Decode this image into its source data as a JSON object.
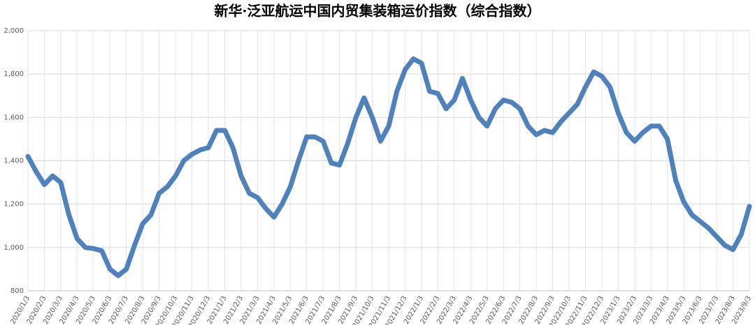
{
  "chart_data": {
    "type": "line",
    "title": "新华·泛亚航运中国内贸集装箱运价指数（综合指数）",
    "categories": [
      "2020/1/3",
      null,
      "2020/2/3",
      null,
      "2020/3/3",
      null,
      "2020/4/3",
      null,
      "2020/5/3",
      null,
      "2020/6/3",
      null,
      "2020/7/3",
      null,
      "2020/8/3",
      null,
      "2020/9/3",
      null,
      "2020/10/3",
      null,
      "2020/11/3",
      null,
      "2020/12/3",
      null,
      "2021/1/3",
      null,
      "2021/2/3",
      null,
      "2021/3/3",
      null,
      "2021/4/3",
      null,
      "2021/5/3",
      null,
      "2021/6/3",
      null,
      "2021/7/3",
      null,
      "2021/8/3",
      null,
      "2021/9/3",
      null,
      "2021/10/3",
      null,
      "2021/11/3",
      null,
      "2021/12/3",
      null,
      "2022/1/3",
      null,
      "2022/2/3",
      null,
      "2022/3/3",
      null,
      "2022/4/3",
      null,
      "2022/5/3",
      null,
      "2022/6/3",
      null,
      "2022/7/3",
      null,
      "2022/8/3",
      null,
      "2022/9/3",
      null,
      "2022/10/3",
      null,
      "2022/11/3",
      null,
      "2022/12/3",
      null,
      "2023/1/3",
      null,
      "2023/2/3",
      null,
      "2023/3/3",
      null,
      "2023/4/3",
      null,
      "2023/5/3",
      null,
      "2023/6/3",
      null,
      "2023/7/3",
      null,
      "2023/8/3",
      null,
      "2023/9/3"
    ],
    "series": [
      {
        "name": "综合指数",
        "color": "#4f81bd",
        "values": [
          1420,
          1350,
          1290,
          1330,
          1300,
          1150,
          1040,
          1000,
          995,
          985,
          900,
          870,
          900,
          1010,
          1110,
          1150,
          1250,
          1280,
          1330,
          1400,
          1430,
          1450,
          1460,
          1540,
          1540,
          1460,
          1330,
          1250,
          1230,
          1180,
          1140,
          1200,
          1280,
          1400,
          1510,
          1510,
          1490,
          1390,
          1380,
          1480,
          1600,
          1690,
          1600,
          1490,
          1560,
          1720,
          1820,
          1870,
          1850,
          1720,
          1710,
          1640,
          1680,
          1780,
          1680,
          1600,
          1560,
          1640,
          1680,
          1670,
          1640,
          1560,
          1520,
          1540,
          1530,
          1580,
          1620,
          1660,
          1740,
          1810,
          1790,
          1740,
          1620,
          1530,
          1490,
          1530,
          1560,
          1560,
          1500,
          1310,
          1210,
          1150,
          1120,
          1090,
          1050,
          1010,
          990,
          1060,
          1190
        ]
      }
    ],
    "ylim": [
      800,
      2000
    ],
    "yticks": [
      {
        "value": 800,
        "label": "800"
      },
      {
        "value": 1000,
        "label": "1,000"
      },
      {
        "value": 1200,
        "label": "1,200"
      },
      {
        "value": 1400,
        "label": "1,400"
      },
      {
        "value": 1600,
        "label": "1,600"
      },
      {
        "value": 1800,
        "label": "1,800"
      },
      {
        "value": 2000,
        "label": "2,000"
      }
    ],
    "grid": true
  }
}
